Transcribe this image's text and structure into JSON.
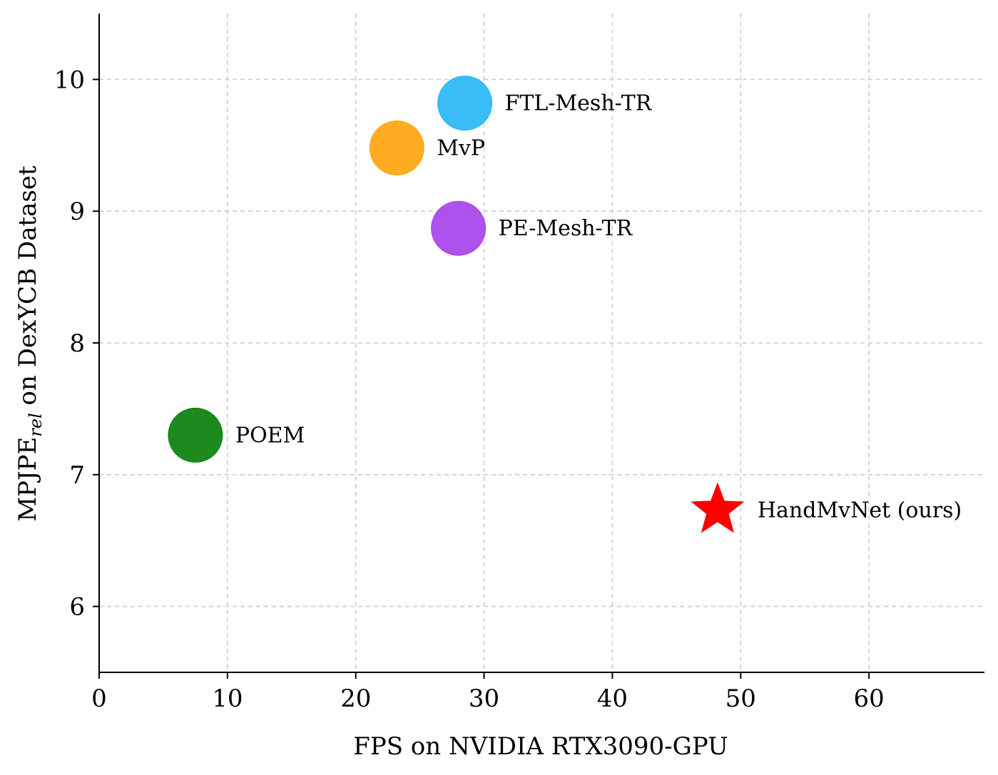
{
  "chart_data": {
    "type": "scatter",
    "title": "",
    "xlabel": "FPS on NVIDIA RTX3090-GPU",
    "ylabel": {
      "main": "MPJPE",
      "sub": "rel",
      "rest": " on DexYCB Dataset"
    },
    "xlim": [
      0,
      69
    ],
    "ylim": [
      5.5,
      10.5
    ],
    "xticks": [
      0,
      10,
      20,
      30,
      40,
      50,
      60
    ],
    "yticks": [
      6,
      7,
      8,
      9,
      10
    ],
    "grid": true,
    "points": [
      {
        "label": "FTL-Mesh-TR",
        "x": 28.5,
        "y": 9.82,
        "color": "#29b6f6",
        "marker": "circle"
      },
      {
        "label": "MvP",
        "x": 23.2,
        "y": 9.48,
        "color": "#ffa50f",
        "marker": "circle"
      },
      {
        "label": "PE-Mesh-TR",
        "x": 28.0,
        "y": 8.87,
        "color": "#a643ea",
        "marker": "circle"
      },
      {
        "label": "POEM",
        "x": 7.5,
        "y": 7.3,
        "color": "#0b800b",
        "marker": "circle"
      },
      {
        "label": "HandMvNet (ours)",
        "x": 48.2,
        "y": 6.73,
        "color": "#ff0000",
        "marker": "star"
      }
    ]
  }
}
